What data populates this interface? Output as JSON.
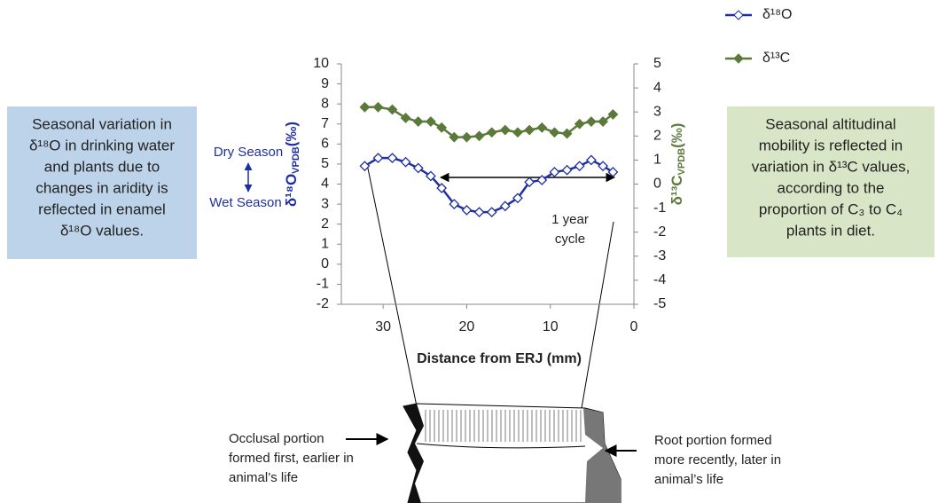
{
  "chart_data": {
    "type": "line",
    "x_label": "Distance from ERJ (mm)",
    "y_label": "δ¹⁸O",
    "y_label_sub": "VPDB",
    "y_label_unit": "(‰)",
    "y2_label": "δ¹³C",
    "y2_label_sub": "VPDB",
    "y2_label_unit": "(‰)",
    "x": [
      32.2,
      30.6,
      28.9,
      27.3,
      25.8,
      24.3,
      23.0,
      21.5,
      20.0,
      18.5,
      17.0,
      15.4,
      13.9,
      12.5,
      11.0,
      9.5,
      8.0,
      6.5,
      5.1,
      3.7,
      2.5
    ],
    "series": [
      {
        "name": "δ¹⁸O",
        "color": "#1f2fa0",
        "marker": "open-diamond",
        "values": [
          4.9,
          5.3,
          5.3,
          5.1,
          4.8,
          4.4,
          3.8,
          3.0,
          2.7,
          2.6,
          2.6,
          2.9,
          3.3,
          4.1,
          4.2,
          4.6,
          4.7,
          4.9,
          5.2,
          4.9,
          4.6
        ]
      },
      {
        "name": "δ¹³C",
        "color": "#5b7a3a",
        "marker": "filled-diamond",
        "axis": "y2",
        "values": [
          3.2,
          3.2,
          3.1,
          2.75,
          2.6,
          2.6,
          2.35,
          1.95,
          1.95,
          2.0,
          2.15,
          2.25,
          2.15,
          2.25,
          2.35,
          2.15,
          2.1,
          2.5,
          2.6,
          2.6,
          2.9
        ]
      }
    ],
    "xlim": [
      35,
      0
    ],
    "xticks": [
      30,
      20,
      10,
      0
    ],
    "ylim": [
      -2,
      10
    ],
    "yticks": [
      -2,
      -1,
      0,
      1,
      2,
      3,
      4,
      5,
      6,
      7,
      8,
      9,
      10
    ],
    "y2lim": [
      -5,
      5
    ],
    "y2ticks": [
      -5,
      -4,
      -3,
      -2,
      -1,
      0,
      1,
      2,
      3,
      4,
      5
    ],
    "grid": false,
    "legend": "top-right",
    "annotations": {
      "dry_season": "Dry Season",
      "wet_season": "Wet Season",
      "cycle": [
        "1 year",
        "cycle"
      ],
      "left_box": [
        "Seasonal variation in",
        "δ¹⁸O in drinking water",
        "and plants due to",
        "changes in aridity is",
        "reflected in enamel",
        "δ¹⁸O values."
      ],
      "right_box": [
        "Seasonal altitudinal",
        "mobility is reflected in",
        "variation in δ¹³C  values,",
        "according to the",
        "proportion of C₃  to C₄",
        "plants in diet."
      ],
      "occlusal": [
        "Occlusal portion",
        "formed first, earlier in",
        "animal’s life"
      ],
      "root": [
        "Root portion formed",
        "more recently, later in",
        "animal’s life"
      ]
    }
  }
}
